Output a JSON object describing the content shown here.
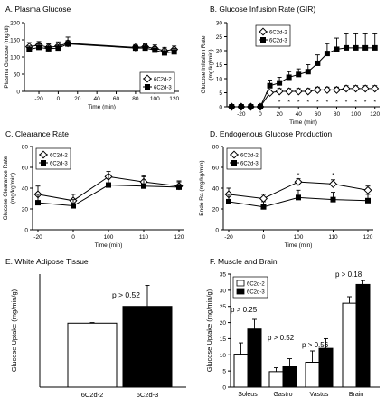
{
  "chart_data": [
    {
      "panel": "A",
      "type": "line",
      "title": "A. Plasma Glucose",
      "xlabel": "Time (min)",
      "ylabel": "Plasma Glucose (mg/dl)",
      "xlim": [
        -35,
        125
      ],
      "ylim": [
        0,
        200
      ],
      "xticks": [
        -20,
        0,
        20,
        40,
        60,
        80,
        100,
        120
      ],
      "yticks": [
        0,
        50,
        100,
        150,
        200
      ],
      "legend_position": "bottom-right",
      "series": [
        {
          "name": "6C2d-2",
          "marker": "open-diamond",
          "x": [
            -30,
            -20,
            -10,
            0,
            10,
            80,
            90,
            100,
            110,
            120
          ],
          "y": [
            130,
            135,
            128,
            132,
            140,
            128,
            130,
            125,
            118,
            122
          ],
          "err": [
            12,
            10,
            10,
            12,
            18,
            8,
            8,
            10,
            10,
            10
          ]
        },
        {
          "name": "6C2d-3",
          "marker": "filled-square",
          "x": [
            -30,
            -20,
            -10,
            0,
            10,
            80,
            90,
            100,
            110,
            120
          ],
          "y": [
            122,
            128,
            124,
            126,
            138,
            126,
            126,
            120,
            112,
            115
          ],
          "err": [
            10,
            10,
            10,
            10,
            10,
            8,
            10,
            10,
            12,
            10
          ]
        }
      ]
    },
    {
      "panel": "B",
      "type": "line",
      "title": "B. Glucose Infusion Rate (GIR)",
      "xlabel": "Time (min)",
      "ylabel": "Glucose Infusion Rate (mg/kg/min)",
      "xlim": [
        -35,
        125
      ],
      "ylim": [
        0,
        30
      ],
      "xticks": [
        -20,
        0,
        20,
        40,
        60,
        80,
        100,
        120
      ],
      "yticks": [
        0,
        5,
        10,
        15,
        20,
        25,
        30
      ],
      "legend_position": "top-left",
      "series": [
        {
          "name": "6C2d-2",
          "marker": "open-diamond",
          "x": [
            -30,
            -20,
            -10,
            0,
            10,
            20,
            30,
            40,
            50,
            60,
            70,
            80,
            90,
            100,
            110,
            120
          ],
          "y": [
            0,
            0,
            0,
            0,
            5,
            5.5,
            5.5,
            5.5,
            5.5,
            6,
            6,
            6,
            6.5,
            6.5,
            6.5,
            6.5
          ],
          "err": [
            0.2,
            0.2,
            0.2,
            0.2,
            1,
            1,
            1,
            1,
            1,
            1,
            1,
            1,
            1,
            1,
            1,
            1
          ]
        },
        {
          "name": "6C2d-3",
          "marker": "filled-square",
          "x": [
            -30,
            -20,
            -10,
            0,
            10,
            20,
            30,
            40,
            50,
            60,
            70,
            80,
            90,
            100,
            110,
            120
          ],
          "y": [
            0,
            0,
            0,
            0,
            7.5,
            8.5,
            10.5,
            11.5,
            12.5,
            15.5,
            19,
            20.5,
            21,
            21,
            21,
            21
          ],
          "err": [
            0.2,
            0.2,
            0.2,
            0.2,
            2,
            2,
            2,
            2,
            2.5,
            3,
            3.5,
            4,
            5,
            5,
            5,
            5
          ]
        }
      ],
      "annotations": {
        "text": "*",
        "x": [
          20,
          30,
          40,
          50,
          60,
          70,
          80,
          90,
          100,
          110,
          120
        ],
        "y": 2
      }
    },
    {
      "panel": "C",
      "type": "line",
      "title": "C. Clearance Rate",
      "xlabel": "Time (min)",
      "ylabel": "Glucose Clearance Rate (mg/kg/min)",
      "categories": [
        "-20",
        "0",
        "100",
        "110",
        "120"
      ],
      "ylim": [
        0,
        80
      ],
      "yticks": [
        0,
        20,
        40,
        60,
        80
      ],
      "legend_position": "top-left",
      "series": [
        {
          "name": "6C2d-2",
          "marker": "open-diamond",
          "y": [
            34,
            28,
            51,
            46,
            42
          ],
          "err": [
            8,
            6,
            5,
            5,
            4
          ]
        },
        {
          "name": "6C2d-3",
          "marker": "filled-square",
          "y": [
            26,
            23,
            43,
            42,
            41
          ],
          "err": [
            8,
            6,
            10,
            10,
            6
          ]
        }
      ]
    },
    {
      "panel": "D",
      "type": "line",
      "title": "D. Endogenous Glucose Production",
      "xlabel": "Time (min)",
      "ylabel": "Endo Ra (mg/kg/min)",
      "categories": [
        "-20",
        "0",
        "100",
        "110",
        "120"
      ],
      "ylim": [
        0,
        80
      ],
      "yticks": [
        0,
        20,
        40,
        60,
        80
      ],
      "legend_position": "top-left",
      "series": [
        {
          "name": "6C2d-2",
          "marker": "open-diamond",
          "y": [
            34,
            30,
            46,
            44,
            38
          ],
          "err": [
            6,
            4,
            3,
            4,
            4
          ]
        },
        {
          "name": "6C2d-3",
          "marker": "filled-square",
          "y": [
            27,
            22,
            31,
            29,
            28
          ],
          "err": [
            7,
            5,
            7,
            7,
            6
          ]
        }
      ],
      "annotations": {
        "text": "*",
        "categories": [
          "100",
          "110"
        ],
        "y": 53
      }
    },
    {
      "panel": "E",
      "type": "bar",
      "title": "E. White Adipose Tissue",
      "ylabel": "Glucose Uptake (mg/min/g)",
      "categories": [
        "6C2d-2",
        "6C2d-3"
      ],
      "values": [
        1.98,
        2.5
      ],
      "err": [
        0.02,
        0.65
      ],
      "colors": [
        "#ffffff",
        "#000000"
      ],
      "ylim": [
        0,
        3.5
      ],
      "annotation": "p > 0.52"
    },
    {
      "panel": "F",
      "type": "bar",
      "title": "F. Muscle and Brain",
      "ylabel": "Glucose Uptake (mg/min/g)",
      "categories": [
        "Soleus",
        "Gastro",
        "Vastus",
        "Brain"
      ],
      "ylim": [
        0,
        35
      ],
      "yticks": [
        0,
        5,
        10,
        15,
        20,
        25,
        30,
        35
      ],
      "legend_position": "top-left",
      "series": [
        {
          "name": "6C2d-2",
          "color": "#ffffff",
          "values": [
            10.2,
            4.8,
            7.7,
            26
          ],
          "err": [
            3.5,
            1.2,
            3.5,
            2
          ]
        },
        {
          "name": "6C2d-3",
          "color": "#000000",
          "values": [
            18,
            6.3,
            12,
            31.8
          ],
          "err": [
            3,
            2.5,
            3,
            1.2
          ]
        }
      ],
      "annotations": [
        "p > 0.25",
        "p > 0.52",
        "p > 0.56",
        "p > 0.18"
      ]
    }
  ]
}
